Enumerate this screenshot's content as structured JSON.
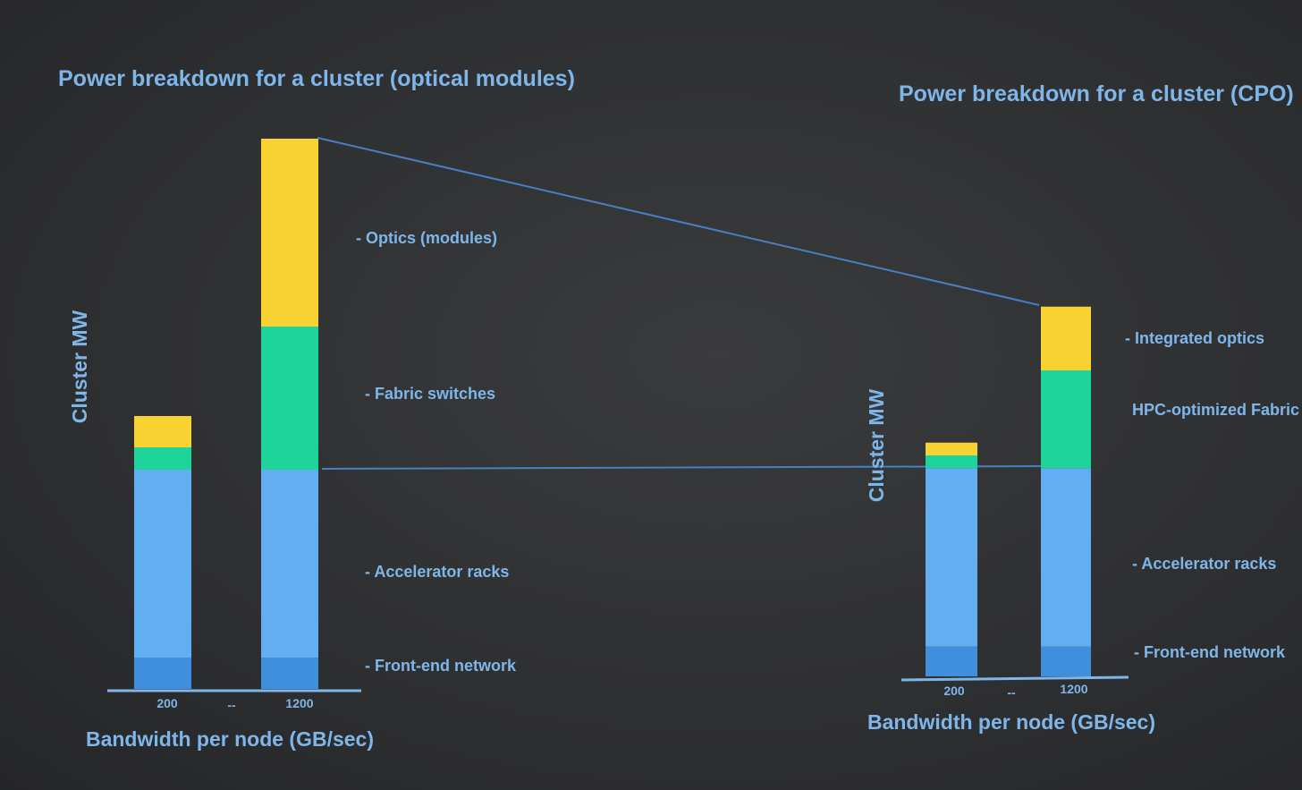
{
  "colors": {
    "front_end": "#3f8fdc",
    "accelerator": "#62aef0",
    "fabric": "#1ed49a",
    "optics": "#f8d230",
    "text": "#7fb6ea",
    "connector": "#4a7fc4"
  },
  "chart_data": [
    {
      "type": "bar",
      "stacked": true,
      "title": "Power breakdown for a cluster (optical modules)",
      "xlabel": "Bandwidth per node (GB/sec)",
      "ylabel": "Cluster MW",
      "categories": [
        "200",
        "1200"
      ],
      "x_separator": "--",
      "series": [
        {
          "name": "- Front-end network",
          "values": [
            0.35,
            0.35
          ]
        },
        {
          "name": "- Accelerator racks",
          "values": [
            2.1,
            2.1
          ]
        },
        {
          "name": "- Fabric switches",
          "values": [
            0.25,
            1.6
          ]
        },
        {
          "name": "- Optics (modules)",
          "values": [
            0.35,
            2.1
          ]
        }
      ],
      "ylim": [
        0,
        6.2
      ],
      "grid": false,
      "legend": "right"
    },
    {
      "type": "bar",
      "stacked": true,
      "title": "Power breakdown for a cluster (CPO)",
      "xlabel": "Bandwidth per node (GB/sec)",
      "ylabel": "Cluster MW",
      "categories": [
        "200",
        "1200"
      ],
      "x_separator": "--",
      "series": [
        {
          "name": "- Front-end network",
          "values": [
            0.35,
            0.35
          ]
        },
        {
          "name": "- Accelerator racks",
          "values": [
            2.1,
            2.1
          ]
        },
        {
          "name": "HPC-optimized Fabric switches",
          "values": [
            0.15,
            1.15
          ]
        },
        {
          "name": "- Integrated optics",
          "values": [
            0.15,
            0.75
          ]
        }
      ],
      "ylim": [
        0,
        6.2
      ],
      "grid": false,
      "legend": "right"
    }
  ]
}
